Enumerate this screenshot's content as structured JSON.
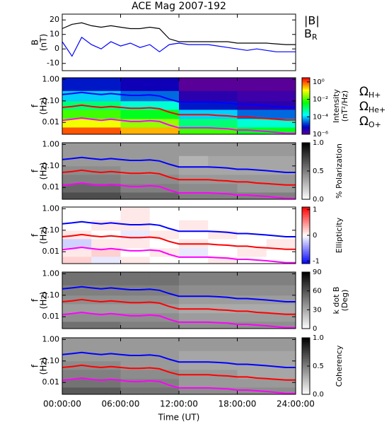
{
  "chart_data": [
    {
      "type": "line",
      "title": "ACE Mag 2007-192",
      "ylabel": [
        "B",
        "(nT)"
      ],
      "x": [
        0,
        1,
        2,
        3,
        4,
        5,
        6,
        7,
        8,
        9,
        10,
        11,
        12,
        13,
        14,
        15,
        16,
        17,
        18,
        19,
        20,
        21,
        22,
        23,
        24
      ],
      "series": [
        {
          "name": "|B|",
          "color": "#000000",
          "values": [
            14,
            17,
            18,
            16,
            15,
            16,
            15,
            14,
            14,
            15,
            14,
            7,
            5,
            5,
            5,
            5,
            5,
            5,
            4,
            4,
            4,
            4,
            3.5,
            3,
            3
          ]
        },
        {
          "name": "BR",
          "color": "#0000ff",
          "values": [
            5,
            -5,
            8,
            3,
            0,
            5,
            2,
            4,
            1,
            3,
            -2,
            3,
            4,
            3,
            3,
            3,
            2,
            1,
            0,
            -1,
            0,
            -1,
            -2,
            -2,
            -2
          ]
        }
      ],
      "ylim": [
        -15,
        24
      ],
      "yticks": [
        -10,
        0,
        10,
        20
      ]
    },
    {
      "type": "heatmap",
      "ylabel": [
        "f",
        "(Hz)"
      ],
      "log_y": true,
      "ylim": [
        0.0028,
        1.2
      ],
      "yticks": [
        0.01,
        {
          "value": 0.1,
          "label": "0.10"
        },
        {
          "value": 1,
          "label": "1.00"
        }
      ],
      "x_edges": [
        0,
        3,
        6,
        9,
        12,
        15,
        18,
        21,
        24
      ],
      "y_edges": [
        0.0028,
        0.006,
        0.015,
        0.04,
        0.1,
        0.3,
        1.2
      ],
      "z": [
        [
          1,
          1,
          0.3,
          0.3,
          0.01,
          0.01,
          0.003,
          0.003
        ],
        [
          0.1,
          0.1,
          0.03,
          0.03,
          0.001,
          0.001,
          0.0003,
          0.0003
        ],
        [
          0.01,
          0.01,
          0.003,
          0.003,
          0.0001,
          0.0001,
          3e-05,
          3e-05
        ],
        [
          0.001,
          0.001,
          0.0003,
          0.0003,
          1e-05,
          1e-05,
          3e-06,
          3e-06
        ],
        [
          0.0001,
          0.0001,
          3e-05,
          3e-05,
          3e-06,
          3e-06,
          2e-06,
          2e-06
        ],
        [
          1e-05,
          1e-05,
          5e-06,
          5e-06,
          1e-06,
          1e-06,
          1e-06,
          1e-06
        ]
      ],
      "zlim": [
        1e-06,
        3
      ],
      "log_z": true,
      "colormap": "rainbow",
      "zticks": [
        {
          "value": 1,
          "label": "10⁰"
        },
        {
          "value": 0.01,
          "label": "10⁻²"
        },
        {
          "value": 0.0001,
          "label": "10⁻⁴"
        },
        {
          "value": 1e-06,
          "label": "10⁻⁶"
        }
      ],
      "colorbar_label": [
        "Intensity",
        "(nT²/Hz)"
      ],
      "x": [
        0,
        1,
        2,
        3,
        4,
        5,
        6,
        7,
        8,
        9,
        10,
        11,
        12,
        13,
        14,
        15,
        16,
        17,
        18,
        19,
        20,
        21,
        22,
        23,
        24
      ],
      "series": [
        {
          "name": "ΩH+",
          "color": "#0000ff",
          "values": [
            0.2,
            0.22,
            0.25,
            0.22,
            0.2,
            0.22,
            0.2,
            0.18,
            0.18,
            0.19,
            0.17,
            0.12,
            0.09,
            0.09,
            0.09,
            0.09,
            0.085,
            0.08,
            0.07,
            0.07,
            0.065,
            0.06,
            0.055,
            0.05,
            0.05
          ]
        },
        {
          "name": "ΩHe+",
          "color": "#ff0000",
          "values": [
            0.05,
            0.055,
            0.063,
            0.055,
            0.05,
            0.055,
            0.05,
            0.045,
            0.045,
            0.048,
            0.043,
            0.03,
            0.023,
            0.023,
            0.023,
            0.023,
            0.021,
            0.02,
            0.018,
            0.018,
            0.016,
            0.015,
            0.014,
            0.013,
            0.013
          ]
        },
        {
          "name": "ΩO+",
          "color": "#ff00ff",
          "values": [
            0.0125,
            0.014,
            0.016,
            0.014,
            0.0125,
            0.014,
            0.0125,
            0.011,
            0.011,
            0.012,
            0.011,
            0.0075,
            0.0056,
            0.0056,
            0.0056,
            0.0056,
            0.0053,
            0.005,
            0.0044,
            0.0044,
            0.0041,
            0.0038,
            0.0034,
            0.0031,
            0.0031
          ]
        }
      ]
    },
    {
      "type": "heatmap",
      "ylabel": [
        "f",
        "(Hz)"
      ],
      "log_y": true,
      "ylim": [
        0.0028,
        1.2
      ],
      "yticks": [
        0.01,
        {
          "value": 0.1,
          "label": "0.10"
        },
        {
          "value": 1,
          "label": "1.00"
        }
      ],
      "x_edges": [
        0,
        3,
        6,
        9,
        12,
        15,
        18,
        21,
        24
      ],
      "y_edges": [
        0.0028,
        0.006,
        0.015,
        0.04,
        0.1,
        0.3,
        1.2
      ],
      "z": [
        [
          0.7,
          0.7,
          0.6,
          0.6,
          0.5,
          0.5,
          0.5,
          0.5
        ],
        [
          0.6,
          0.6,
          0.5,
          0.5,
          0.45,
          0.45,
          0.4,
          0.4
        ],
        [
          0.5,
          0.5,
          0.45,
          0.45,
          0.4,
          0.4,
          0.4,
          0.4
        ],
        [
          0.45,
          0.45,
          0.4,
          0.4,
          0.35,
          0.35,
          0.35,
          0.35
        ],
        [
          0.4,
          0.4,
          0.4,
          0.4,
          0.3,
          0.35,
          0.35,
          0.35
        ],
        [
          0.4,
          0.4,
          0.4,
          0.4,
          0.4,
          0.4,
          0.4,
          0.4
        ]
      ],
      "zlim": [
        0,
        1
      ],
      "colormap": "gray",
      "zticks": [
        {
          "value": 1,
          "label": "1.0"
        },
        0.5,
        {
          "value": 0,
          "label": "0.0"
        }
      ],
      "colorbar_label": [
        "% Polarization"
      ]
    },
    {
      "type": "heatmap",
      "ylabel": [
        "f",
        "(Hz)"
      ],
      "log_y": true,
      "ylim": [
        0.0028,
        1.2
      ],
      "yticks": [
        0.01,
        {
          "value": 0.1,
          "label": "0.10"
        },
        {
          "value": 1,
          "label": "1.00"
        }
      ],
      "x_edges": [
        0,
        3,
        6,
        9,
        12,
        15,
        18,
        21,
        24
      ],
      "y_edges": [
        0.0028,
        0.006,
        0.015,
        0.04,
        0.1,
        0.3,
        1.2
      ],
      "z": [
        [
          0.2,
          -0.1,
          0.1,
          0,
          0,
          0.1,
          0,
          0
        ],
        [
          0.1,
          0.2,
          0,
          0.1,
          -0.1,
          0,
          0.1,
          0
        ],
        [
          -0.2,
          0.1,
          0.1,
          0,
          0.1,
          0,
          0,
          0.1
        ],
        [
          0.1,
          0,
          -0.1,
          0.1,
          0,
          0.1,
          0,
          0
        ],
        [
          0,
          0.1,
          0.1,
          0,
          0.1,
          0,
          0,
          0
        ],
        [
          0,
          0,
          0.1,
          0,
          0,
          0,
          0,
          0
        ]
      ],
      "zlim": [
        -1.1,
        1.1
      ],
      "colormap": "bwr",
      "zticks": [
        1,
        0,
        -1
      ],
      "colorbar_label": [
        "Ellipticity"
      ]
    },
    {
      "type": "heatmap",
      "ylabel": [
        "f",
        "(Hz)"
      ],
      "log_y": true,
      "ylim": [
        0.0028,
        1.2
      ],
      "yticks": [
        0.01,
        {
          "value": 0.1,
          "label": "0.10"
        },
        {
          "value": 1,
          "label": "1.00"
        }
      ],
      "x_edges": [
        0,
        3,
        6,
        9,
        12,
        15,
        18,
        21,
        24
      ],
      "y_edges": [
        0.0028,
        0.006,
        0.015,
        0.04,
        0.1,
        0.3,
        1.2
      ],
      "z": [
        [
          50,
          50,
          45,
          45,
          40,
          40,
          40,
          40
        ],
        [
          40,
          40,
          40,
          40,
          35,
          35,
          35,
          35
        ],
        [
          35,
          35,
          35,
          35,
          30,
          30,
          30,
          30
        ],
        [
          40,
          40,
          40,
          40,
          35,
          35,
          35,
          35
        ],
        [
          45,
          45,
          45,
          45,
          40,
          40,
          40,
          40
        ],
        [
          50,
          50,
          50,
          50,
          45,
          45,
          45,
          45
        ]
      ],
      "zlim": [
        0,
        90
      ],
      "colormap": "gray",
      "zticks": [
        90,
        60,
        30,
        0
      ],
      "colorbar_label": [
        "k dot B",
        "(Deg)"
      ]
    },
    {
      "type": "heatmap",
      "ylabel": [
        "f",
        "(Hz)"
      ],
      "log_y": true,
      "ylim": [
        0.0028,
        1.2
      ],
      "yticks": [
        0.01,
        {
          "value": 0.1,
          "label": "0.10"
        },
        {
          "value": 1,
          "label": "1.00"
        }
      ],
      "x_edges": [
        0,
        3,
        6,
        9,
        12,
        15,
        18,
        21,
        24
      ],
      "y_edges": [
        0.0028,
        0.006,
        0.015,
        0.04,
        0.1,
        0.3,
        1.2
      ],
      "z": [
        [
          0.65,
          0.65,
          0.55,
          0.55,
          0.45,
          0.45,
          0.45,
          0.45
        ],
        [
          0.55,
          0.55,
          0.5,
          0.5,
          0.4,
          0.4,
          0.4,
          0.4
        ],
        [
          0.5,
          0.5,
          0.45,
          0.45,
          0.4,
          0.4,
          0.35,
          0.35
        ],
        [
          0.45,
          0.45,
          0.4,
          0.4,
          0.35,
          0.35,
          0.35,
          0.35
        ],
        [
          0.4,
          0.4,
          0.4,
          0.4,
          0.35,
          0.35,
          0.35,
          0.35
        ],
        [
          0.4,
          0.4,
          0.4,
          0.4,
          0.4,
          0.4,
          0.4,
          0.4
        ]
      ],
      "zlim": [
        0,
        1
      ],
      "colormap": "gray",
      "zticks": [
        {
          "value": 1,
          "label": "1.0"
        },
        0.5,
        {
          "value": 0,
          "label": "0.0"
        }
      ],
      "colorbar_label": [
        "Coherency"
      ],
      "xlim": [
        0,
        24
      ],
      "xlabel": "Time (UT)",
      "xticks": [
        {
          "value": 0,
          "label": "00:00:00"
        },
        {
          "value": 6,
          "label": "06:00:00"
        },
        {
          "value": 12,
          "label": "12:00:00"
        },
        {
          "value": 18,
          "label": "18:00:00"
        },
        {
          "value": 24,
          "label": "24:00:00"
        }
      ]
    }
  ]
}
